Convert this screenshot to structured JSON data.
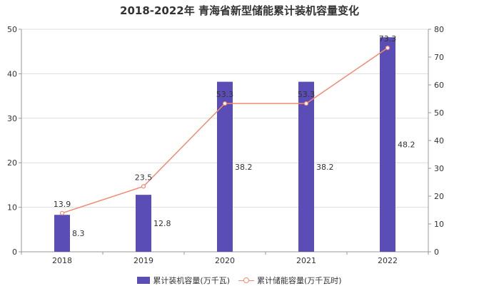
{
  "chart_data": {
    "type": "bar",
    "title": "2018-2022年 青海省新型储能累计装机容量变化",
    "categories": [
      "2018",
      "2019",
      "2020",
      "2021",
      "2022"
    ],
    "y_left": {
      "ylim": [
        0,
        50
      ],
      "ticks": [
        "0",
        "10",
        "20",
        "30",
        "40",
        "50"
      ]
    },
    "y_right": {
      "ylim": [
        0,
        80
      ],
      "ticks": [
        "0",
        "10",
        "20",
        "30",
        "40",
        "50",
        "60",
        "70",
        "80"
      ]
    },
    "series": [
      {
        "name": "累计装机容量(万千瓦)",
        "type": "bar",
        "axis": "left",
        "values": [
          8.3,
          12.8,
          38.2,
          38.2,
          48.2
        ],
        "labels": [
          "8.3",
          "12.8",
          "38.2",
          "38.2",
          "48.2"
        ],
        "color": "#5b4db6"
      },
      {
        "name": "累计储能容量(万千瓦时)",
        "type": "line",
        "axis": "right",
        "values": [
          13.9,
          23.5,
          53.3,
          53.3,
          73.3
        ],
        "labels": [
          "13.9",
          "23.5",
          "53.3",
          "53.3",
          "73.3"
        ],
        "color": "#f28b72"
      }
    ],
    "grid": true,
    "legend": "bottom"
  }
}
